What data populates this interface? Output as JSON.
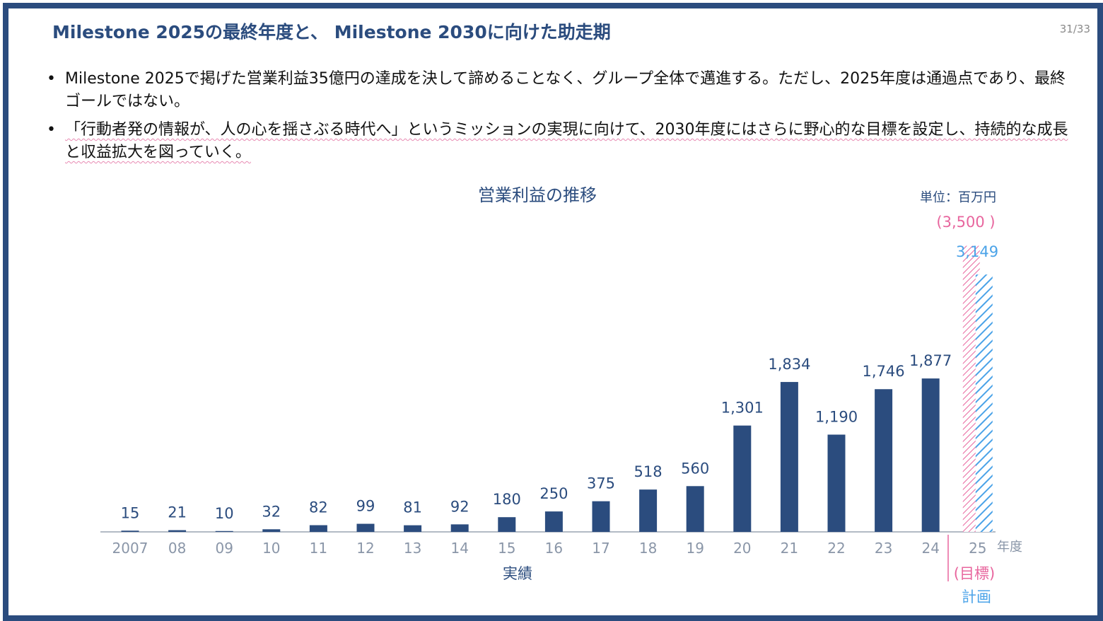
{
  "slide": {
    "title": "Milestone 2025の最終年度と、 Milestone 2030に向けた助走期",
    "page": "31/33",
    "bullets": [
      "Milestone 2025で掲げた営業利益35億円の達成を決して諦めることなく、グループ全体で邁進する。ただし、2025年度は通過点であり、最終ゴールではない。",
      "「行動者発の情報が、人の心を揺さぶる時代へ」というミッションの実現に向けて、2030年度にはさらに野心的な目標を設定し、持続的な成長と収益拡大を図っていく。"
    ]
  },
  "colors": {
    "frame": "#2b4c7e",
    "bar": "#2b4c7e",
    "target": "#e8669e",
    "plan": "#4ba3e8",
    "axis_label": "#8a96a8"
  },
  "chart_data": {
    "type": "bar",
    "title": "営業利益の推移",
    "unit": "単位：百万円",
    "xlabel": "年度",
    "ylim": [
      0,
      3600
    ],
    "grid": false,
    "categories": [
      "2007",
      "08",
      "09",
      "10",
      "11",
      "12",
      "13",
      "14",
      "15",
      "16",
      "17",
      "18",
      "19",
      "20",
      "21",
      "22",
      "23",
      "24",
      "25"
    ],
    "series": [
      {
        "name": "実績",
        "values": [
          15,
          21,
          10,
          32,
          82,
          99,
          81,
          92,
          180,
          250,
          375,
          518,
          560,
          1301,
          1834,
          1190,
          1746,
          1877,
          null
        ],
        "labels": [
          "15",
          "21",
          "10",
          "32",
          "82",
          "99",
          "81",
          "92",
          "180",
          "250",
          "375",
          "518",
          "560",
          "1,301",
          "1,834",
          "1,190",
          "1,746",
          "1,877",
          ""
        ]
      },
      {
        "name": "(目標)",
        "values": [
          null,
          null,
          null,
          null,
          null,
          null,
          null,
          null,
          null,
          null,
          null,
          null,
          null,
          null,
          null,
          null,
          null,
          null,
          3500
        ],
        "label": "(3,500 )",
        "pattern": "hatched"
      },
      {
        "name": "計画",
        "values": [
          null,
          null,
          null,
          null,
          null,
          null,
          null,
          null,
          null,
          null,
          null,
          null,
          null,
          null,
          null,
          null,
          null,
          null,
          3149
        ],
        "label": "3,149",
        "pattern": "hatched"
      }
    ],
    "group_labels": {
      "actual": "実績",
      "target": "(目標)",
      "plan": "計画"
    }
  }
}
